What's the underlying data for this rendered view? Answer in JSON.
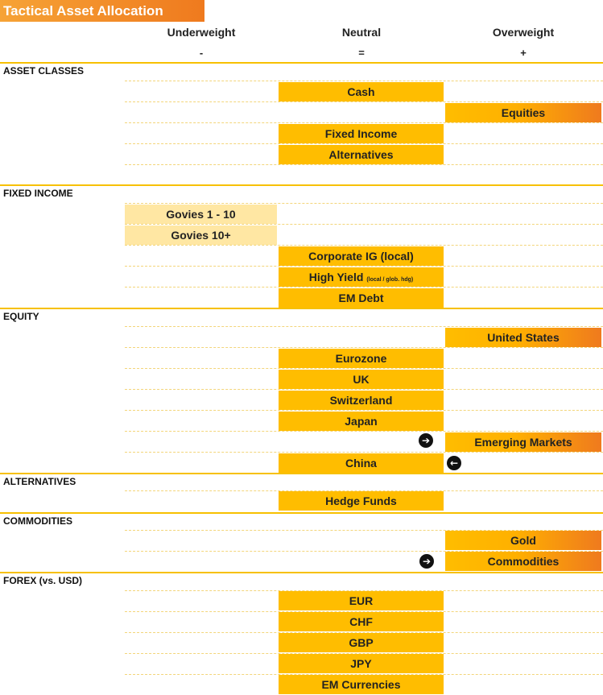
{
  "title": "Tactical Asset Allocation",
  "columns": [
    {
      "label": "Underweight",
      "symbol": "-"
    },
    {
      "label": "Neutral",
      "symbol": "="
    },
    {
      "label": "Overweight",
      "symbol": "+"
    }
  ],
  "sections": {
    "asset_classes": {
      "label": "ASSET CLASSES",
      "items": {
        "cash": "Cash",
        "equities": "Equities",
        "fixed_income": "Fixed Income",
        "alternatives": "Alternatives"
      }
    },
    "fixed_income": {
      "label": "FIXED INCOME",
      "items": {
        "govies_1_10": "Govies 1 - 10",
        "govies_10p": "Govies 10+",
        "corporate_ig": "Corporate IG (local)",
        "high_yield": "High Yield",
        "high_yield_note": "(local / glob. hdg)",
        "em_debt": "EM Debt"
      }
    },
    "equity": {
      "label": "EQUITY",
      "items": {
        "us": "United States",
        "eurozone": "Eurozone",
        "uk": "UK",
        "switzerland": "Switzerland",
        "japan": "Japan",
        "em": "Emerging Markets",
        "china": "China"
      }
    },
    "alternatives": {
      "label": "ALTERNATIVES",
      "items": {
        "hedge_funds": "Hedge Funds"
      }
    },
    "commodities": {
      "label": "COMMODITIES",
      "items": {
        "gold": "Gold",
        "commodities": "Commodities"
      }
    },
    "forex": {
      "label": "FOREX (vs. USD)",
      "items": {
        "eur": "EUR",
        "chf": "CHF",
        "gbp": "GBP",
        "jpy": "JPY",
        "em_currencies": "EM Currencies"
      }
    }
  },
  "colors": {
    "neutral": "#ffbd00",
    "underweight": "#ffe7a3",
    "overweight_start": "#ffbd00",
    "overweight_end": "#ef7a1e",
    "section_line": "#f7c000"
  },
  "icons": {
    "arrow_right": "arrow-right-circle-icon",
    "arrow_left": "arrow-left-circle-icon"
  }
}
